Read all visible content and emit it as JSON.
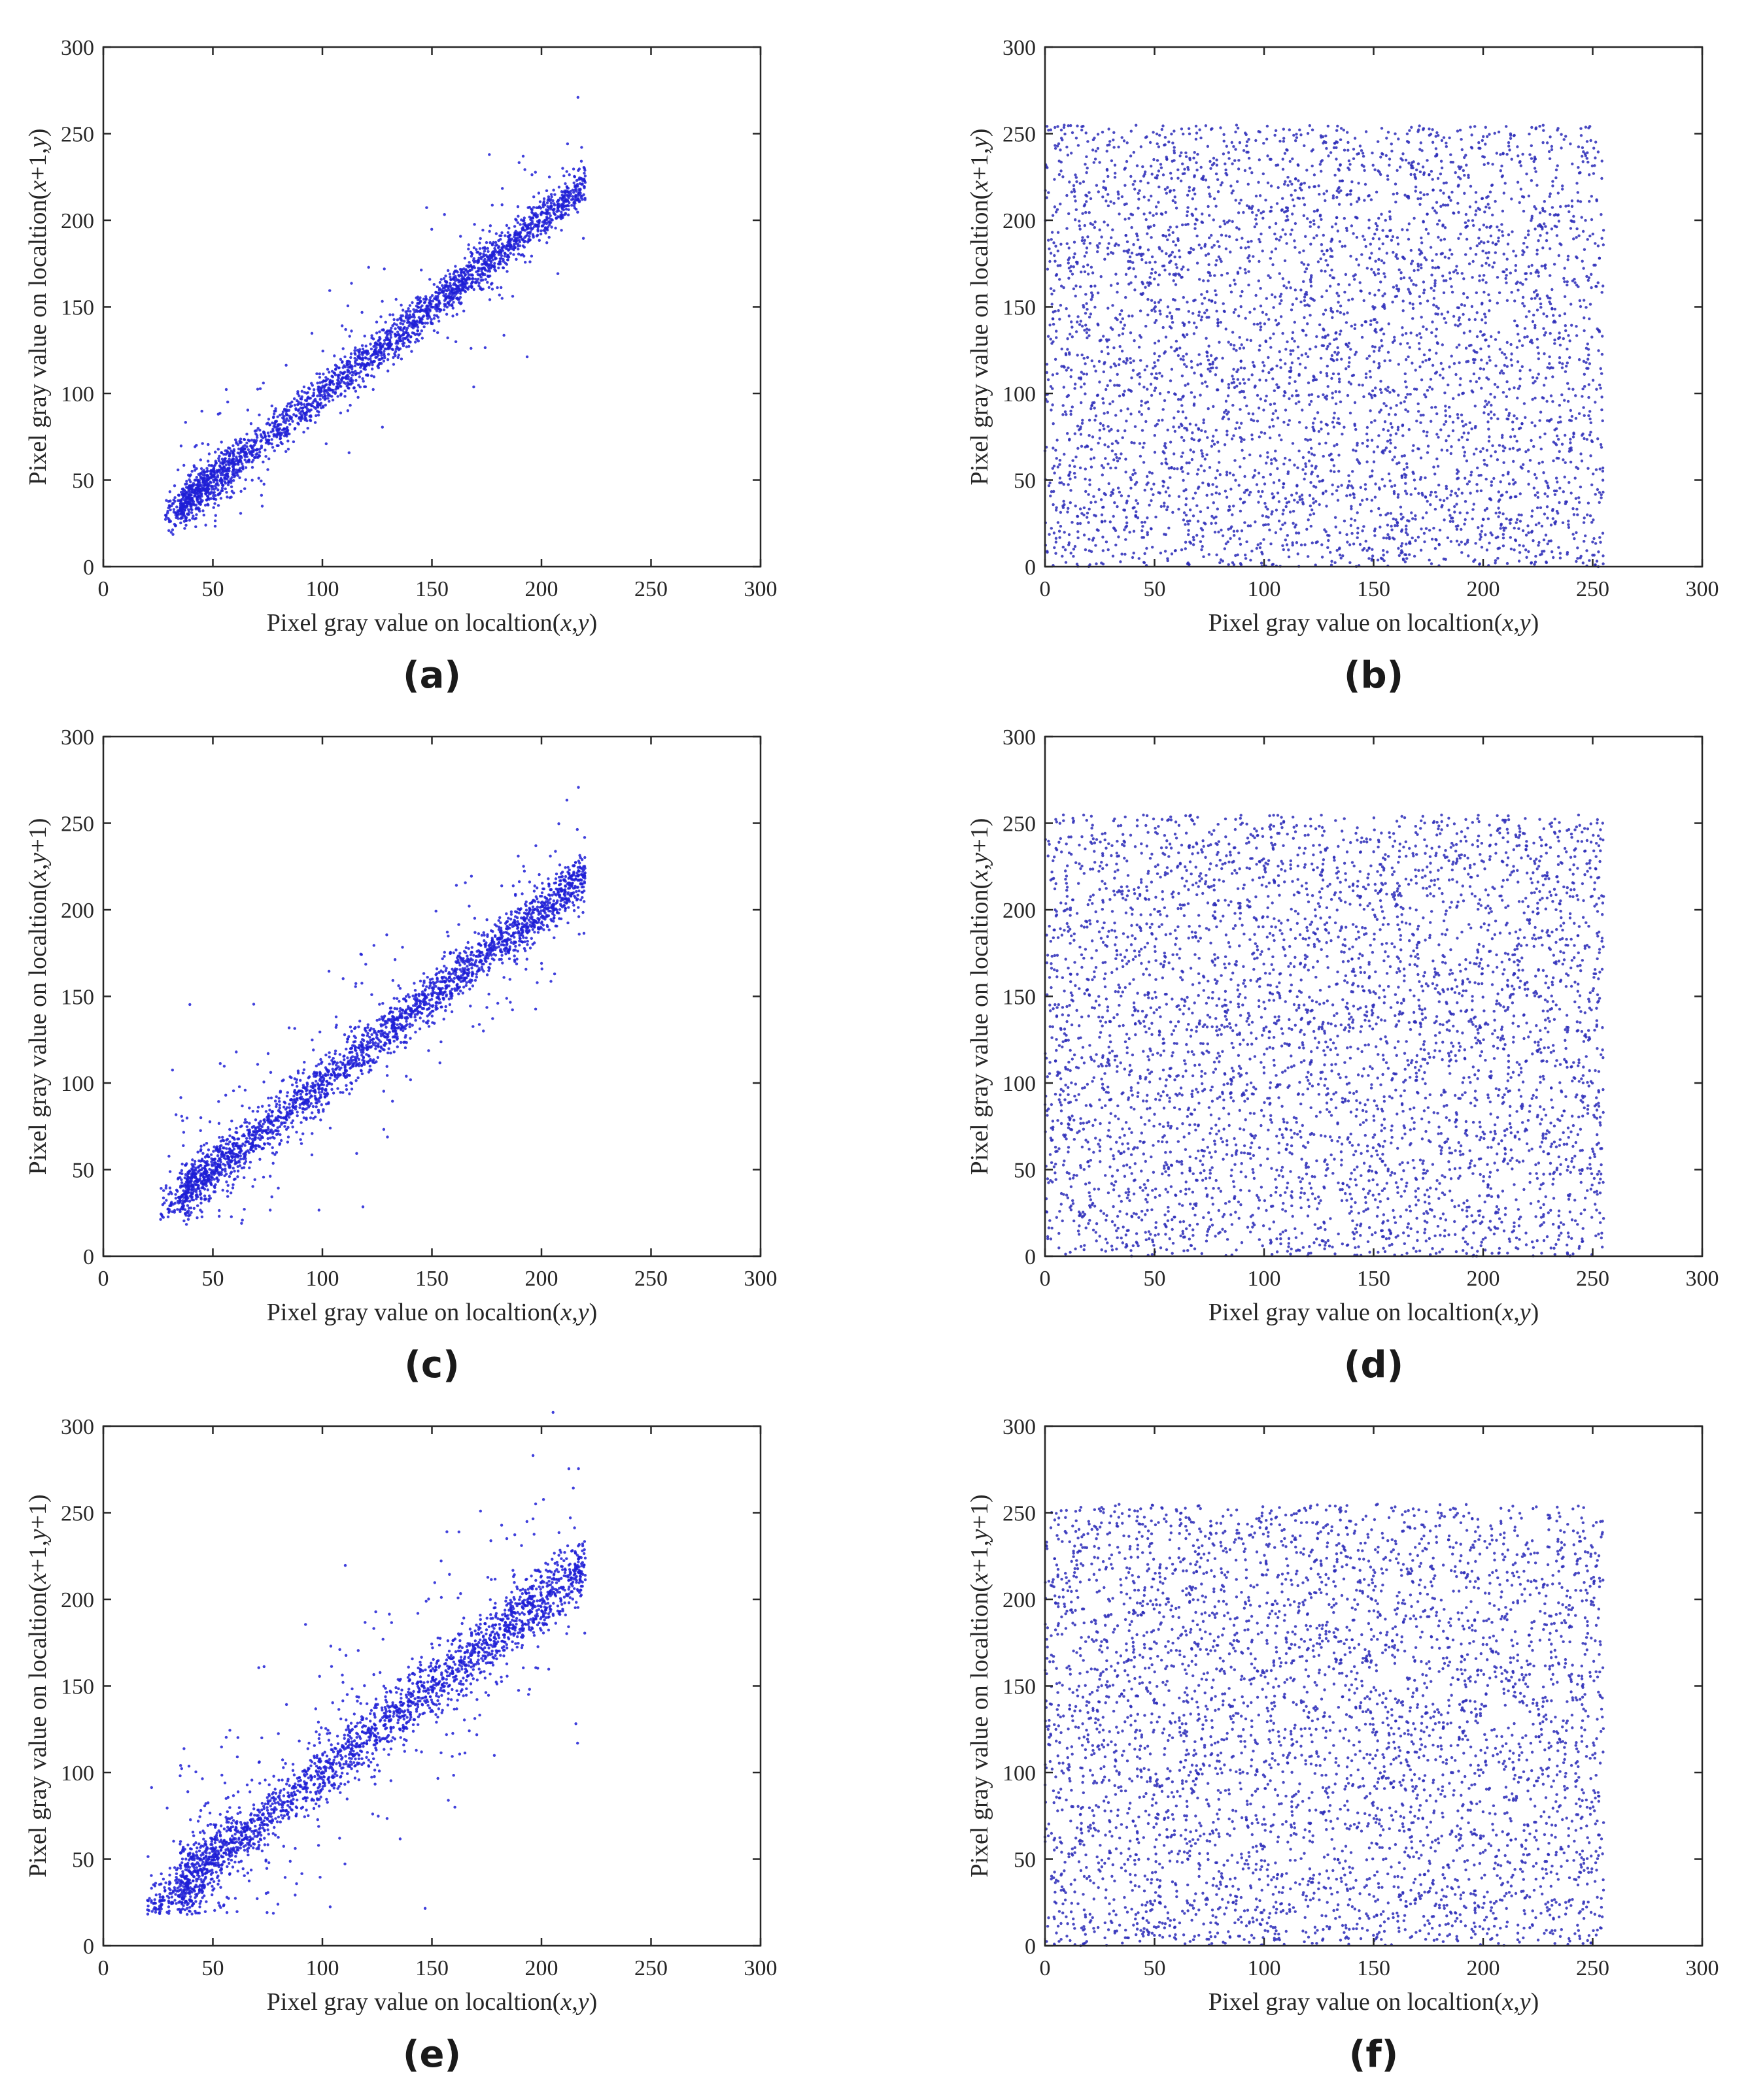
{
  "chart_data": [
    {
      "type": "scatter",
      "panel": "(a)",
      "xlabel": "Pixel gray value on localtion(x,y)",
      "ylabel": "Pixel gray value on localtion(x+1,y)",
      "xlim": [
        0,
        300
      ],
      "ylim": [
        0,
        300
      ],
      "xticks": [
        "0",
        "50",
        "100",
        "150",
        "200",
        "250",
        "300"
      ],
      "yticks": [
        "0",
        "50",
        "100",
        "150",
        "200",
        "250",
        "300"
      ],
      "point_color": "#1f1fd6",
      "distribution": "correlated",
      "range_x": [
        28,
        235
      ],
      "spread": 6,
      "outlier_fraction": 0.08,
      "point_count": 2600,
      "seed": 11
    },
    {
      "type": "scatter",
      "panel": "(b)",
      "xlabel": "Pixel gray value on localtion(x,y)",
      "ylabel": "Pixel gray value on localtion(x+1,y)",
      "xlim": [
        0,
        300
      ],
      "ylim": [
        0,
        300
      ],
      "xticks": [
        "0",
        "50",
        "100",
        "150",
        "200",
        "250",
        "300"
      ],
      "yticks": [
        "0",
        "50",
        "100",
        "150",
        "200",
        "250",
        "300"
      ],
      "point_color": "#2b2bb8",
      "distribution": "uniform",
      "range_x": [
        0,
        255
      ],
      "range_y": [
        0,
        255
      ],
      "point_count": 4200,
      "seed": 23
    },
    {
      "type": "scatter",
      "panel": "(c)",
      "xlabel": "Pixel gray value on localtion(x,y)",
      "ylabel": "Pixel gray value on localtion(x,y+1)",
      "xlim": [
        0,
        300
      ],
      "ylim": [
        0,
        300
      ],
      "xticks": [
        "0",
        "50",
        "100",
        "150",
        "200",
        "250",
        "300"
      ],
      "yticks": [
        "0",
        "50",
        "100",
        "150",
        "200",
        "250",
        "300"
      ],
      "point_color": "#1f1fd6",
      "distribution": "correlated",
      "range_x": [
        26,
        235
      ],
      "spread": 7,
      "outlier_fraction": 0.1,
      "point_count": 2600,
      "seed": 37
    },
    {
      "type": "scatter",
      "panel": "(d)",
      "xlabel": "Pixel gray value on localtion(x,y)",
      "ylabel": "Pixel gray value on localtion(x,y+1)",
      "xlim": [
        0,
        300
      ],
      "ylim": [
        0,
        300
      ],
      "xticks": [
        "0",
        "50",
        "100",
        "150",
        "200",
        "250",
        "300"
      ],
      "yticks": [
        "0",
        "50",
        "100",
        "150",
        "200",
        "250",
        "300"
      ],
      "point_color": "#2b2bb8",
      "distribution": "uniform",
      "range_x": [
        0,
        255
      ],
      "range_y": [
        0,
        255
      ],
      "point_count": 4200,
      "seed": 41
    },
    {
      "type": "scatter",
      "panel": "(e)",
      "xlabel": "Pixel gray value on localtion(x,y)",
      "ylabel": "Pixel gray value on localtion(x+1,y+1)",
      "xlim": [
        0,
        300
      ],
      "ylim": [
        0,
        300
      ],
      "xticks": [
        "0",
        "50",
        "100",
        "150",
        "200",
        "250",
        "300"
      ],
      "yticks": [
        "0",
        "50",
        "100",
        "150",
        "200",
        "250",
        "300"
      ],
      "point_color": "#1f1fd6",
      "distribution": "correlated",
      "range_x": [
        20,
        235
      ],
      "spread": 9,
      "outlier_fraction": 0.14,
      "point_count": 2600,
      "seed": 53
    },
    {
      "type": "scatter",
      "panel": "(f)",
      "xlabel": "Pixel gray value on localtion(x,y)",
      "ylabel": "Pixel gray value on localtion(x+1,y+1)",
      "xlim": [
        0,
        300
      ],
      "ylim": [
        0,
        300
      ],
      "xticks": [
        "0",
        "50",
        "100",
        "150",
        "200",
        "250",
        "300"
      ],
      "yticks": [
        "0",
        "50",
        "100",
        "150",
        "200",
        "250",
        "300"
      ],
      "point_color": "#2b2bb8",
      "distribution": "uniform",
      "range_x": [
        0,
        255
      ],
      "range_y": [
        0,
        255
      ],
      "point_count": 4200,
      "seed": 67
    }
  ]
}
